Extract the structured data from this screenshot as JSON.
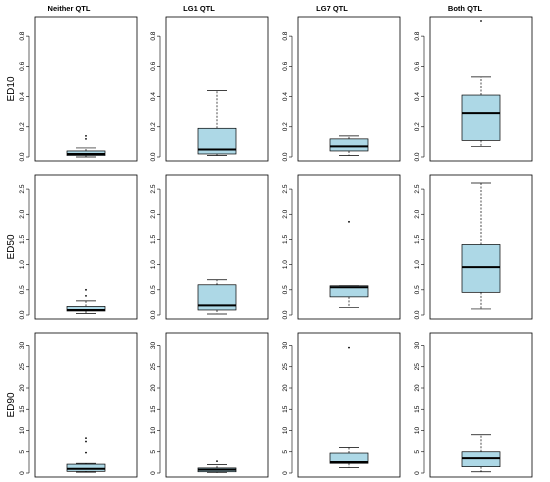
{
  "chart_data": {
    "type": "boxplot",
    "columns": [
      "Neither QTL",
      "LG1 QTL",
      "LG7 QTL",
      "Both QTL"
    ],
    "colors": {
      "box_fill": "#add8e6",
      "line": "#000000"
    },
    "rows": [
      {
        "label": "ED10",
        "ylim": [
          0,
          0.9
        ],
        "ticks": [
          "0.0",
          "0.2",
          "0.4",
          "0.6",
          "0.8"
        ],
        "tick_values": [
          0,
          0.2,
          0.4,
          0.6,
          0.8
        ],
        "boxes": [
          {
            "min": 0.0,
            "q1": 0.01,
            "median": 0.02,
            "q3": 0.04,
            "max": 0.06,
            "outliers": [
              0.12,
              0.14
            ]
          },
          {
            "min": 0.01,
            "q1": 0.02,
            "median": 0.05,
            "q3": 0.19,
            "max": 0.44,
            "outliers": []
          },
          {
            "min": 0.01,
            "q1": 0.04,
            "median": 0.07,
            "q3": 0.12,
            "max": 0.14,
            "outliers": []
          },
          {
            "min": 0.07,
            "q1": 0.11,
            "median": 0.29,
            "q3": 0.41,
            "max": 0.53,
            "outliers": [
              0.9
            ]
          }
        ]
      },
      {
        "label": "ED50",
        "ylim": [
          0,
          2.7
        ],
        "ticks": [
          "0.0",
          "0.5",
          "1.0",
          "1.5",
          "2.0",
          "2.5"
        ],
        "tick_values": [
          0,
          0.5,
          1.0,
          1.5,
          2.0,
          2.5
        ],
        "boxes": [
          {
            "min": 0.03,
            "q1": 0.08,
            "median": 0.1,
            "q3": 0.17,
            "max": 0.28,
            "outliers": [
              0.38,
              0.5
            ]
          },
          {
            "min": 0.02,
            "q1": 0.1,
            "median": 0.19,
            "q3": 0.6,
            "max": 0.7,
            "outliers": []
          },
          {
            "min": 0.15,
            "q1": 0.36,
            "median": 0.55,
            "q3": 0.58,
            "max": 0.58,
            "outliers": [
              1.85
            ]
          },
          {
            "min": 0.12,
            "q1": 0.45,
            "median": 0.95,
            "q3": 1.4,
            "max": 2.62,
            "outliers": []
          }
        ]
      },
      {
        "label": "ED90",
        "ylim": [
          0,
          32
        ],
        "ticks": [
          "0",
          "5",
          "10",
          "15",
          "20",
          "25",
          "30"
        ],
        "tick_values": [
          0,
          5,
          10,
          15,
          20,
          25,
          30
        ],
        "boxes": [
          {
            "min": 0.2,
            "q1": 0.4,
            "median": 1.0,
            "q3": 2.1,
            "max": 2.3,
            "outliers": [
              4.8,
              7.4,
              8.2
            ]
          },
          {
            "min": 0.1,
            "q1": 0.3,
            "median": 0.8,
            "q3": 1.2,
            "max": 2.0,
            "outliers": [
              2.8
            ]
          },
          {
            "min": 1.3,
            "q1": 2.3,
            "median": 2.6,
            "q3": 4.7,
            "max": 6.0,
            "outliers": [
              29.5
            ]
          },
          {
            "min": 0.3,
            "q1": 1.5,
            "median": 3.5,
            "q3": 5.0,
            "max": 9.0,
            "outliers": []
          }
        ]
      }
    ]
  }
}
